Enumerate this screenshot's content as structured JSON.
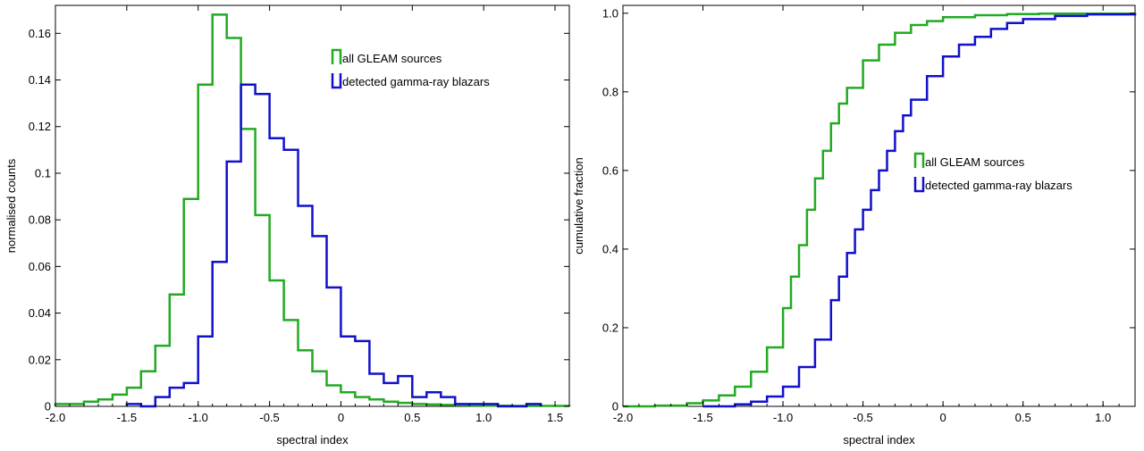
{
  "colors": {
    "green": "#22aa22",
    "blue": "#1111cc",
    "axis": "#000000"
  },
  "chart_data": [
    {
      "type": "step",
      "kind": "histogram",
      "xlabel": "spectral index",
      "ylabel": "normalised counts",
      "xlim": [
        -2.0,
        1.6
      ],
      "ylim": [
        0,
        0.172
      ],
      "xticks": [
        -2.0,
        -1.5,
        -1.0,
        -0.5,
        0,
        0.5,
        1.0,
        1.5
      ],
      "xtick_labels": [
        "-2.0",
        "-1.5",
        "-1.0",
        "-0.5",
        "0",
        "0.5",
        "1.0",
        "1.5"
      ],
      "yticks": [
        0,
        0.02,
        0.04,
        0.06,
        0.08,
        0.1,
        0.12,
        0.14,
        0.16
      ],
      "ytick_labels": [
        "0",
        "0.02",
        "0.04",
        "0.06",
        "0.08",
        "0.1",
        "0.12",
        "0.14",
        "0.16"
      ],
      "legend_position": "top-right",
      "series": [
        {
          "name": "all GLEAM sources",
          "color": "#22aa22",
          "bin_edges": [
            -2.0,
            -1.9,
            -1.8,
            -1.7,
            -1.6,
            -1.5,
            -1.4,
            -1.3,
            -1.2,
            -1.1,
            -1.0,
            -0.9,
            -0.8,
            -0.7,
            -0.6,
            -0.5,
            -0.4,
            -0.3,
            -0.2,
            -0.1,
            0.0,
            0.1,
            0.2,
            0.3,
            0.4,
            0.5,
            0.6,
            0.7,
            0.8,
            0.9,
            1.0,
            1.1,
            1.2,
            1.3,
            1.4,
            1.5,
            1.6
          ],
          "values": [
            0.001,
            0.001,
            0.002,
            0.003,
            0.005,
            0.008,
            0.015,
            0.026,
            0.048,
            0.089,
            0.138,
            0.168,
            0.158,
            0.119,
            0.082,
            0.054,
            0.037,
            0.024,
            0.015,
            0.009,
            0.006,
            0.004,
            0.003,
            0.002,
            0.0015,
            0.001,
            0.0008,
            0.0006,
            0.0005,
            0.0004,
            0.0003,
            0.0003,
            0.0002,
            0.0002,
            0.0002,
            0.0002
          ]
        },
        {
          "name": "detected gamma-ray blazars",
          "color": "#1111cc",
          "bin_edges": [
            -1.5,
            -1.4,
            -1.3,
            -1.2,
            -1.1,
            -1.0,
            -0.9,
            -0.8,
            -0.7,
            -0.6,
            -0.5,
            -0.4,
            -0.3,
            -0.2,
            -0.1,
            0.0,
            0.1,
            0.2,
            0.3,
            0.4,
            0.5,
            0.6,
            0.7,
            0.8,
            0.9,
            1.0,
            1.1,
            1.2,
            1.3,
            1.4
          ],
          "values": [
            0.001,
            0.0,
            0.004,
            0.008,
            0.01,
            0.03,
            0.062,
            0.105,
            0.138,
            0.134,
            0.115,
            0.11,
            0.086,
            0.073,
            0.051,
            0.03,
            0.028,
            0.014,
            0.01,
            0.013,
            0.004,
            0.006,
            0.004,
            0.001,
            0.001,
            0.001,
            0.0,
            0.0,
            0.001,
            0.0
          ]
        }
      ]
    },
    {
      "type": "step",
      "kind": "cumulative",
      "xlabel": "spectral index",
      "ylabel": "cumulative fraction",
      "xlim": [
        -2.0,
        1.2
      ],
      "ylim": [
        0,
        1.02
      ],
      "xticks": [
        -2.0,
        -1.5,
        -1.0,
        -0.5,
        0,
        0.5,
        1.0
      ],
      "xtick_labels": [
        "-2.0",
        "-1.5",
        "-1.0",
        "-0.5",
        "0",
        "0.5",
        "1.0"
      ],
      "yticks": [
        0,
        0.2,
        0.4,
        0.6,
        0.8,
        1.0
      ],
      "ytick_labels": [
        "0",
        "0.2",
        "0.4",
        "0.6",
        "0.8",
        "1.0"
      ],
      "legend_position": "center-right",
      "series": [
        {
          "name": "all GLEAM sources",
          "color": "#22aa22",
          "x": [
            -2.0,
            -1.8,
            -1.6,
            -1.5,
            -1.4,
            -1.3,
            -1.2,
            -1.1,
            -1.0,
            -0.95,
            -0.9,
            -0.85,
            -0.8,
            -0.75,
            -0.7,
            -0.65,
            -0.6,
            -0.5,
            -0.4,
            -0.3,
            -0.2,
            -0.1,
            0.0,
            0.2,
            0.4,
            0.6,
            1.2
          ],
          "y": [
            0.0,
            0.002,
            0.008,
            0.015,
            0.028,
            0.05,
            0.088,
            0.15,
            0.25,
            0.33,
            0.41,
            0.5,
            0.58,
            0.65,
            0.72,
            0.77,
            0.81,
            0.88,
            0.92,
            0.95,
            0.97,
            0.98,
            0.99,
            0.995,
            0.998,
            0.999,
            1.0
          ]
        },
        {
          "name": "detected gamma-ray blazars",
          "color": "#1111cc",
          "x": [
            -1.5,
            -1.3,
            -1.2,
            -1.1,
            -1.0,
            -0.9,
            -0.8,
            -0.7,
            -0.65,
            -0.6,
            -0.55,
            -0.5,
            -0.45,
            -0.4,
            -0.35,
            -0.3,
            -0.25,
            -0.2,
            -0.1,
            0.0,
            0.1,
            0.2,
            0.3,
            0.4,
            0.5,
            0.7,
            0.9,
            1.2
          ],
          "y": [
            0.0,
            0.005,
            0.012,
            0.025,
            0.05,
            0.1,
            0.17,
            0.27,
            0.33,
            0.39,
            0.45,
            0.5,
            0.55,
            0.6,
            0.65,
            0.7,
            0.74,
            0.78,
            0.84,
            0.89,
            0.92,
            0.94,
            0.96,
            0.975,
            0.985,
            0.993,
            0.997,
            1.0
          ]
        }
      ]
    }
  ]
}
